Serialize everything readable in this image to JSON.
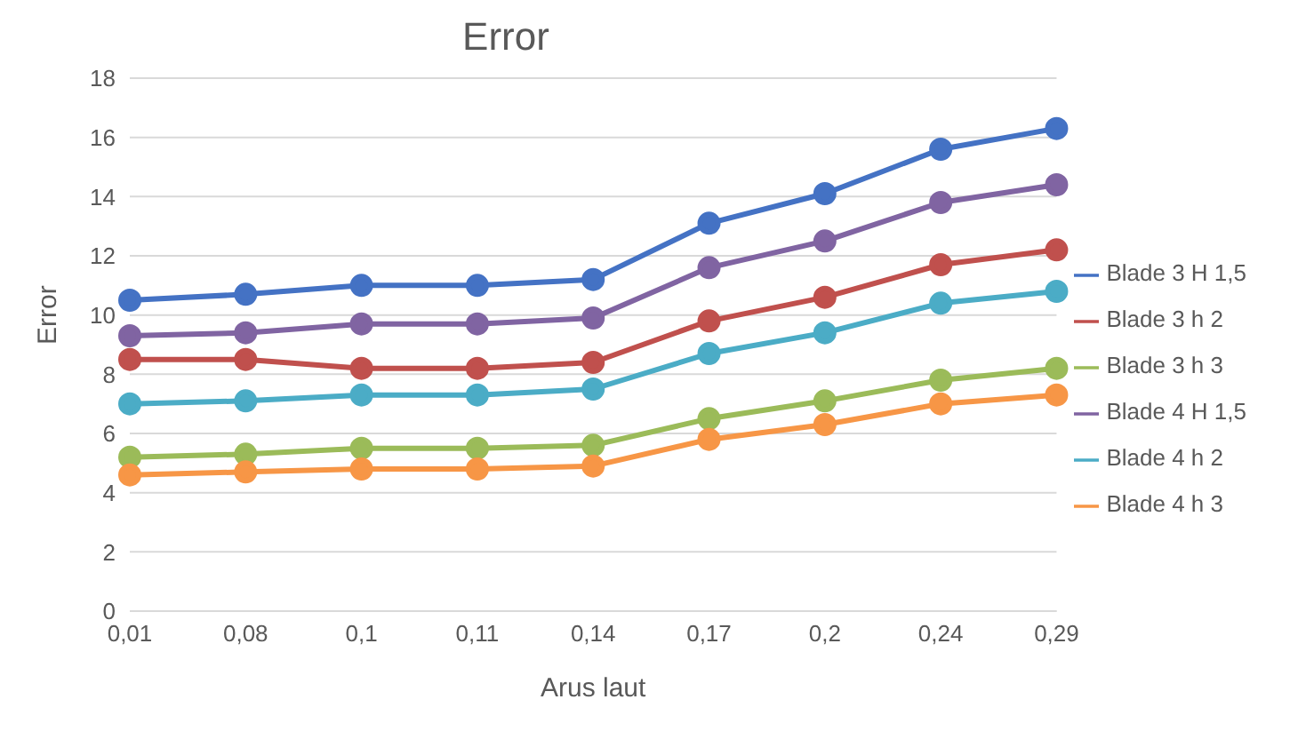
{
  "chart_data": {
    "type": "line",
    "title": "Error",
    "xlabel": "Arus laut",
    "ylabel": "Error",
    "categories": [
      "0,01",
      "0,08",
      "0,1",
      "0,11",
      "0,14",
      "0,17",
      "0,2",
      "0,24",
      "0,29"
    ],
    "series": [
      {
        "name": "Blade 3 H 1,5",
        "color": "#4472c4",
        "values": [
          10.5,
          10.7,
          11.0,
          11.0,
          11.2,
          13.1,
          14.1,
          15.6,
          16.3
        ]
      },
      {
        "name": "Blade 3 h 2",
        "color": "#c0504d",
        "values": [
          8.5,
          8.5,
          8.2,
          8.2,
          8.4,
          9.8,
          10.6,
          11.7,
          12.2
        ]
      },
      {
        "name": "Blade 3 h 3",
        "color": "#9bbb59",
        "values": [
          5.2,
          5.3,
          5.5,
          5.5,
          5.6,
          6.5,
          7.1,
          7.8,
          8.2
        ]
      },
      {
        "name": "Blade 4 H 1,5",
        "color": "#8064a2",
        "values": [
          9.3,
          9.4,
          9.7,
          9.7,
          9.9,
          11.6,
          12.5,
          13.8,
          14.4
        ]
      },
      {
        "name": "Blade 4 h 2",
        "color": "#4bacc6",
        "values": [
          7.0,
          7.1,
          7.3,
          7.3,
          7.5,
          8.7,
          9.4,
          10.4,
          10.8
        ]
      },
      {
        "name": "Blade 4 h 3",
        "color": "#f79646",
        "values": [
          4.6,
          4.7,
          4.8,
          4.8,
          4.9,
          5.8,
          6.3,
          7.0,
          7.3
        ]
      }
    ],
    "ylim": [
      0,
      18
    ],
    "yticks": [
      0,
      2,
      4,
      6,
      8,
      10,
      12,
      14,
      16,
      18
    ],
    "grid": "y",
    "legend": "right",
    "marker": "circle",
    "line_style": "solid"
  }
}
